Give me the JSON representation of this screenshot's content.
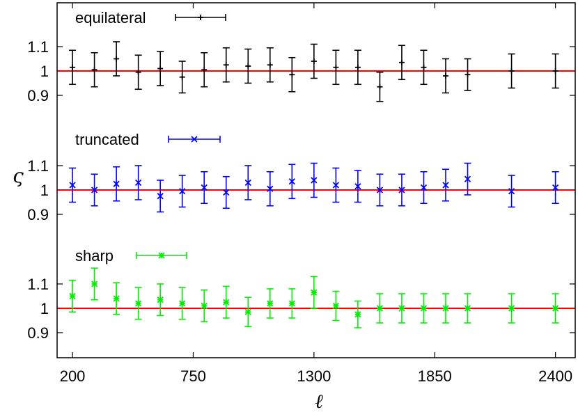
{
  "chart_data": {
    "type": "scatter",
    "xlabel": "ℓ",
    "ylabel": "ς",
    "xlim": [
      130,
      2490
    ],
    "x_ticks": [
      200,
      750,
      1300,
      1850,
      2400
    ],
    "x": [
      200,
      300,
      400,
      500,
      600,
      700,
      800,
      900,
      1000,
      1100,
      1200,
      1300,
      1400,
      1500,
      1600,
      1700,
      1800,
      1900,
      2000,
      2100,
      2200,
      2300,
      2400
    ],
    "reference_value": 1,
    "legend_placement": "top-left of each panel",
    "panels": [
      {
        "name": "equilateral",
        "color": "#000000",
        "marker": "plus",
        "ylim": [
          0.78,
          1.3
        ],
        "y_ticks": [
          {
            "value": 0.9,
            "label": "0.9"
          },
          {
            "value": 1.0,
            "label": "1"
          },
          {
            "value": 1.1,
            "label": "1.1"
          }
        ],
        "values": [
          1.015,
          1.005,
          1.05,
          0.995,
          1.01,
          0.975,
          1.005,
          1.025,
          1.02,
          1.025,
          0.985,
          1.04,
          1.015,
          1.015,
          0.935,
          1.035,
          1.015,
          0.98,
          0.985,
          1.0,
          1.0
        ],
        "x_index": [
          0,
          1,
          2,
          3,
          4,
          5,
          6,
          7,
          8,
          9,
          10,
          11,
          12,
          13,
          14,
          15,
          16,
          17,
          18,
          20,
          22
        ],
        "errors": [
          0.07,
          0.07,
          0.07,
          0.07,
          0.07,
          0.065,
          0.07,
          0.07,
          0.07,
          0.07,
          0.07,
          0.07,
          0.07,
          0.07,
          0.06,
          0.07,
          0.07,
          0.07,
          0.065,
          0.07,
          0.07
        ]
      },
      {
        "name": "truncated",
        "color": "#0000ff",
        "marker": "cross",
        "ylim": [
          0.78,
          1.3
        ],
        "y_ticks": [
          {
            "value": 0.9,
            "label": "0.9"
          },
          {
            "value": 1.0,
            "label": "1"
          },
          {
            "value": 1.1,
            "label": "1.1"
          }
        ],
        "values": [
          1.02,
          1.0,
          1.025,
          1.03,
          0.975,
          0.995,
          1.01,
          0.99,
          1.03,
          1.005,
          1.035,
          1.04,
          1.02,
          1.015,
          1.0,
          1.0,
          1.01,
          1.02,
          1.045,
          0.995,
          1.01
        ],
        "x_index": [
          0,
          1,
          2,
          3,
          4,
          5,
          6,
          7,
          8,
          9,
          10,
          11,
          12,
          13,
          14,
          15,
          16,
          17,
          18,
          20,
          22
        ],
        "errors": [
          0.07,
          0.065,
          0.07,
          0.07,
          0.065,
          0.065,
          0.065,
          0.065,
          0.07,
          0.07,
          0.07,
          0.07,
          0.07,
          0.065,
          0.065,
          0.065,
          0.065,
          0.065,
          0.065,
          0.065,
          0.065
        ]
      },
      {
        "name": "sharp",
        "color": "#00ee00",
        "marker": "star",
        "ylim": [
          0.78,
          1.3
        ],
        "y_ticks": [
          {
            "value": 0.9,
            "label": "0.9"
          },
          {
            "value": 1.0,
            "label": "1"
          },
          {
            "value": 1.1,
            "label": "1.1"
          }
        ],
        "values": [
          1.05,
          1.1,
          1.04,
          1.02,
          1.035,
          1.02,
          1.01,
          1.025,
          0.985,
          1.02,
          1.02,
          1.065,
          1.01,
          0.975,
          1.0,
          1.0,
          1.0,
          1.0,
          1.0,
          1.0,
          1.0
        ],
        "x_index": [
          0,
          1,
          2,
          3,
          4,
          5,
          6,
          7,
          8,
          9,
          10,
          11,
          12,
          13,
          14,
          15,
          16,
          17,
          18,
          20,
          22
        ],
        "errors": [
          0.065,
          0.065,
          0.065,
          0.065,
          0.065,
          0.065,
          0.065,
          0.065,
          0.06,
          0.06,
          0.06,
          0.065,
          0.06,
          0.055,
          0.06,
          0.06,
          0.06,
          0.06,
          0.06,
          0.06,
          0.06
        ]
      }
    ]
  }
}
